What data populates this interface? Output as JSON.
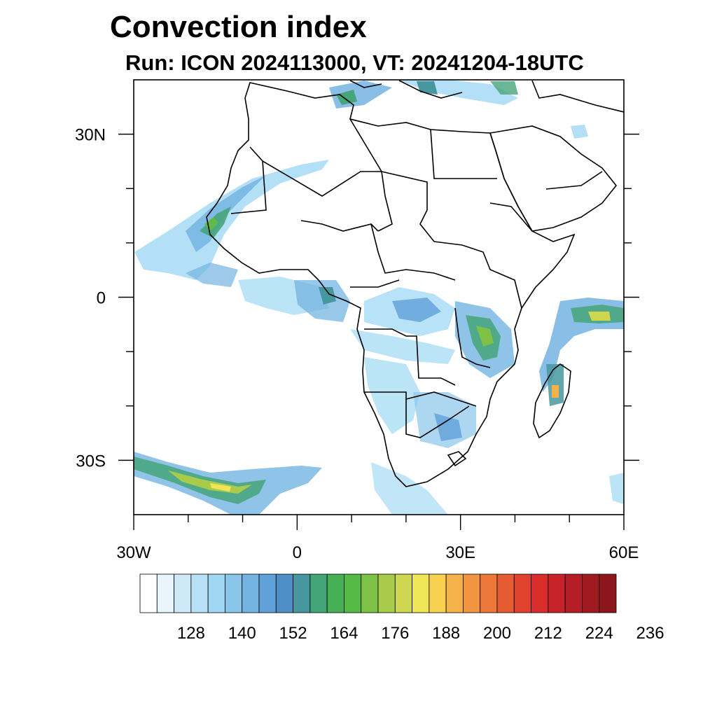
{
  "title": "Convection index",
  "subtitle": "Run: ICON 2024113000,  VT: 20241204-18UTC",
  "map": {
    "lon_range": [
      -30,
      60
    ],
    "lat_range": [
      -40,
      40
    ],
    "lon_ticks": [
      {
        "value": -30,
        "label": "30W"
      },
      {
        "value": 0,
        "label": "0"
      },
      {
        "value": 30,
        "label": "30E"
      },
      {
        "value": 60,
        "label": "60E"
      }
    ],
    "lat_ticks": [
      {
        "value": 30,
        "label": "30N"
      },
      {
        "value": 0,
        "label": "0"
      },
      {
        "value": -30,
        "label": "30S"
      }
    ],
    "minor_lon_ticks": [
      -20,
      -10,
      10,
      20,
      40,
      50
    ],
    "minor_lat_ticks": [
      20,
      10,
      -10,
      -20
    ]
  },
  "colorbar": {
    "labels": [
      "128",
      "140",
      "152",
      "164",
      "176",
      "188",
      "200",
      "212",
      "224",
      "236"
    ],
    "colors": [
      "#ffffff",
      "#e8f5fc",
      "#cfe9f8",
      "#b8e0f7",
      "#a0d8f4",
      "#8ac6ea",
      "#74b4e2",
      "#5fa1d8",
      "#4e8fc8",
      "#46989e",
      "#43a578",
      "#46b054",
      "#56ba47",
      "#7dc247",
      "#a8cb4c",
      "#cfd64f",
      "#f0e457",
      "#f8d150",
      "#f5b24a",
      "#f29541",
      "#ed783a",
      "#e65c32",
      "#e0432d",
      "#d92d2b",
      "#c8232a",
      "#b51e27",
      "#a01a22",
      "#8c161c"
    ]
  }
}
